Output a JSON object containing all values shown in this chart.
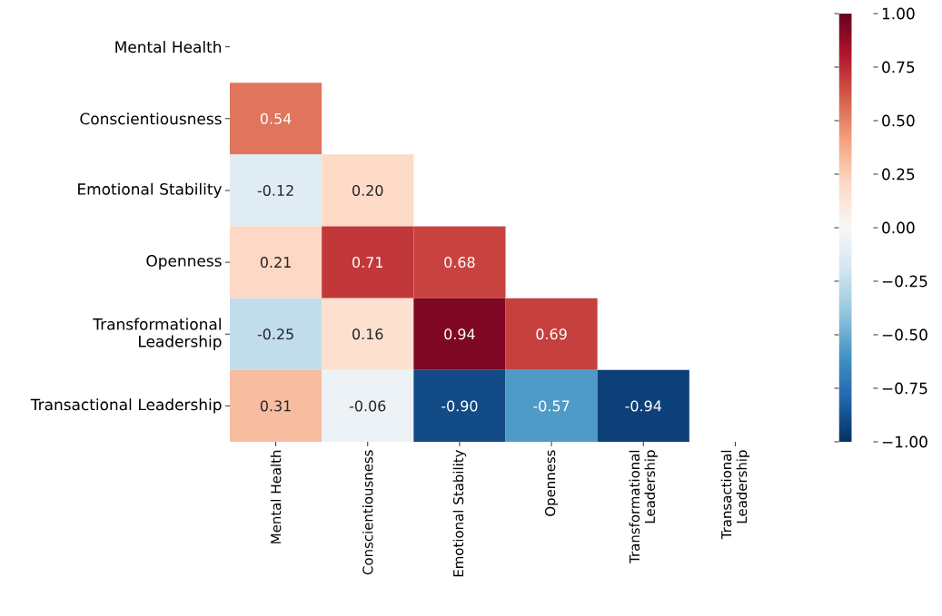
{
  "chart_data": {
    "type": "heatmap",
    "categories": [
      "Mental Health",
      "Conscientiousness",
      "Emotional Stability",
      "Openness",
      "Transformational Leadership",
      "Transactional Leadership"
    ],
    "y_categories": [
      "Mental Health",
      "Conscientiousness",
      "Emotional Stability",
      "Openness",
      "Transformational Leadership",
      "Transactional Leadership"
    ],
    "cells": [
      [
        null,
        null,
        null,
        null,
        null,
        null
      ],
      [
        0.54,
        null,
        null,
        null,
        null,
        null
      ],
      [
        -0.12,
        0.2,
        null,
        null,
        null,
        null
      ],
      [
        0.21,
        0.71,
        0.68,
        null,
        null,
        null
      ],
      [
        -0.25,
        0.16,
        0.94,
        0.69,
        null,
        null
      ],
      [
        0.31,
        -0.06,
        -0.9,
        -0.57,
        -0.94,
        null
      ]
    ],
    "cell_labels": [
      [
        null,
        null,
        null,
        null,
        null,
        null
      ],
      [
        "0.54",
        null,
        null,
        null,
        null,
        null
      ],
      [
        "-0.12",
        "0.20",
        null,
        null,
        null,
        null
      ],
      [
        "0.21",
        "0.71",
        "0.68",
        null,
        null,
        null
      ],
      [
        "-0.25",
        "0.16",
        "0.94",
        "0.69",
        null,
        null
      ],
      [
        "0.31",
        "-0.06",
        "-0.90",
        "-0.57",
        "-0.94",
        null
      ]
    ],
    "clim": [
      -1,
      1
    ],
    "cticks": [
      {
        "value": -1,
        "label": "−1.00"
      },
      {
        "value": -0.75,
        "label": "−0.75"
      },
      {
        "value": -0.5,
        "label": "−0.50"
      },
      {
        "value": -0.25,
        "label": "−0.25"
      },
      {
        "value": 0,
        "label": "0.00"
      },
      {
        "value": 0.25,
        "label": "0.25"
      },
      {
        "value": 0.5,
        "label": "0.50"
      },
      {
        "value": 0.75,
        "label": "0.75"
      },
      {
        "value": 1,
        "label": "1.00"
      }
    ]
  }
}
